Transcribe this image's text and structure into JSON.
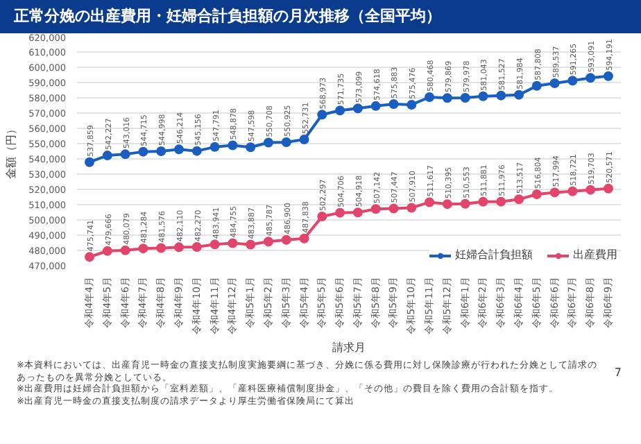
{
  "chart_data": {
    "type": "line",
    "title": "正常分娩の出産費用・妊婦合計負担額の月次推移（全国平均）",
    "xlabel": "請求月",
    "ylabel": "金額（円）",
    "categories": [
      "令和4年4月",
      "令和4年5月",
      "令和4年6月",
      "令和4年7月",
      "令和4年8月",
      "令和4年9月",
      "令和4年10月",
      "令和4年11月",
      "令和4年12月",
      "令和5年1月",
      "令和5年2月",
      "令和5年3月",
      "令和5年4月",
      "令和5年5月",
      "令和5年6月",
      "令和5年7月",
      "令和5年8月",
      "令和5年9月",
      "令和5年10月",
      "令和5年11月",
      "令和5年12月",
      "令和6年1月",
      "令和6年2月",
      "令和6年3月",
      "令和6年4月",
      "令和6年5月",
      "令和6年6月",
      "令和6年7月",
      "令和6年8月",
      "令和6年9月"
    ],
    "series": [
      {
        "name": "妊婦合計負担額",
        "color": "#1a5fbf",
        "values": [
          537859,
          542227,
          543016,
          544715,
          544998,
          546214,
          545156,
          547791,
          548878,
          547598,
          550708,
          550925,
          552731,
          568973,
          571735,
          573099,
          574618,
          575883,
          575476,
          580468,
          579869,
          579978,
          581043,
          581527,
          581984,
          587808,
          589537,
          591265,
          593091,
          594191
        ],
        "value_labels": [
          "537,859",
          "542,227",
          "543,016",
          "544,715",
          "544,998",
          "546,214",
          "545,156",
          "547,791",
          "548,878",
          "547,598",
          "550,708",
          "550,925",
          "552,731",
          "568,973",
          "571,735",
          "573,099",
          "574,618",
          "575,883",
          "575,476",
          "580,468",
          "579,869",
          "579,978",
          "581,043",
          "581,527",
          "581,984",
          "587,808",
          "589,537",
          "591,265",
          "593,091",
          "594,191"
        ]
      },
      {
        "name": "出産費用",
        "color": "#e2456c",
        "values": [
          475741,
          479666,
          480079,
          481284,
          481576,
          482110,
          482270,
          483941,
          484755,
          483887,
          485787,
          486900,
          487838,
          502297,
          504706,
          504918,
          507142,
          507447,
          507910,
          511617,
          510395,
          510553,
          511881,
          511976,
          513517,
          516804,
          517994,
          518721,
          519703,
          520571
        ],
        "value_labels": [
          "475,741",
          "479,666",
          "480,079",
          "481,284",
          "481,576",
          "482,110",
          "482,270",
          "483,941",
          "484,755",
          "483,887",
          "485,787",
          "486,900",
          "487,838",
          "502,297",
          "504,706",
          "504,918",
          "507,142",
          "507,447",
          "507,910",
          "511,617",
          "510,395",
          "510,553",
          "511,881",
          "511,976",
          "513,517",
          "516,804",
          "517,994",
          "518,721",
          "519,703",
          "520,571"
        ]
      }
    ],
    "ylim": [
      470000,
      620000
    ],
    "yticks": [
      {
        "value": 470000,
        "label": "470,000"
      },
      {
        "value": 480000,
        "label": "480,000"
      },
      {
        "value": 490000,
        "label": "490,000"
      },
      {
        "value": 500000,
        "label": "500,000"
      },
      {
        "value": 510000,
        "label": "510,000"
      },
      {
        "value": 520000,
        "label": "520,000"
      },
      {
        "value": 530000,
        "label": "530,000"
      },
      {
        "value": 540000,
        "label": "540,000"
      },
      {
        "value": 550000,
        "label": "550,000"
      },
      {
        "value": 560000,
        "label": "560,000"
      },
      {
        "value": 570000,
        "label": "570,000"
      },
      {
        "value": 580000,
        "label": "580,000"
      },
      {
        "value": 590000,
        "label": "590,000"
      },
      {
        "value": 600000,
        "label": "600,000"
      },
      {
        "value": 610000,
        "label": "610,000"
      },
      {
        "value": 620000,
        "label": "620,000"
      }
    ],
    "grid": "y",
    "legend": "bottom",
    "marker": "circle",
    "line_style": "solid",
    "annotations": [
      "※本資料においては、出産育児一時金の直接支払制度実施要綱に基づき、分娩に係る費用に対し保険診療が行われた分娩として請求のあったものを異常分娩としている。",
      "※出産費用は妊婦合計負担額から「室料差額」、「産科医療補償制度掛金」、「その他」の費目を除く費用の合計額を指す。",
      "※出産育児一時金の直接支払制度の請求データより厚生労働省保険局にて算出",
      "7"
    ]
  }
}
